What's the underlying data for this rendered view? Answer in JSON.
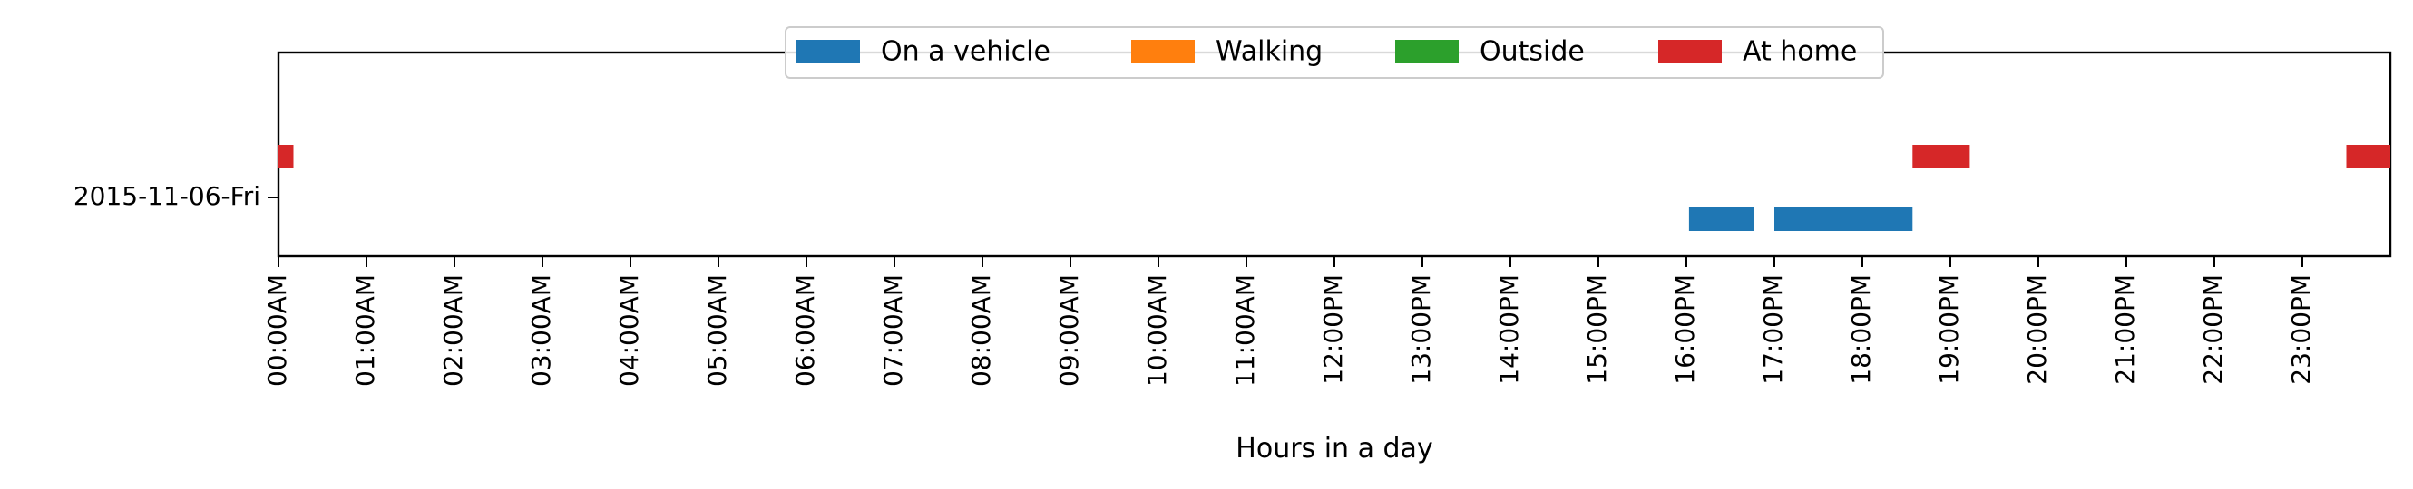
{
  "chart_data": {
    "type": "bar",
    "orientation": "horizontal-timeline",
    "xlabel": "Hours in a day",
    "ylabel": "",
    "xlim": [
      0,
      24
    ],
    "x_ticks": [
      "00:00AM",
      "01:00AM",
      "02:00AM",
      "03:00AM",
      "04:00AM",
      "05:00AM",
      "06:00AM",
      "07:00AM",
      "08:00AM",
      "09:00AM",
      "10:00AM",
      "11:00AM",
      "12:00PM",
      "13:00PM",
      "14:00PM",
      "15:00PM",
      "16:00PM",
      "17:00PM",
      "18:00PM",
      "19:00PM",
      "20:00PM",
      "21:00PM",
      "22:00PM",
      "23:00PM"
    ],
    "categories": [
      "2015-11-06-Fri"
    ],
    "grid": false,
    "legend_position": "top-center",
    "series": [
      {
        "name": "On a vehicle",
        "color": "#1f77b4",
        "lane": 0,
        "segments": [
          {
            "start": 16.03,
            "end": 16.77
          },
          {
            "start": 17.0,
            "end": 18.57
          }
        ]
      },
      {
        "name": "Walking",
        "color": "#ff7f0e",
        "lane": 1,
        "segments": []
      },
      {
        "name": "Outside",
        "color": "#2ca02c",
        "lane": 2,
        "segments": []
      },
      {
        "name": "At home",
        "color": "#d62728",
        "lane": 3,
        "segments": [
          {
            "start": 0.0,
            "end": 0.17
          },
          {
            "start": 18.57,
            "end": 19.22
          },
          {
            "start": 23.5,
            "end": 24.0
          }
        ]
      }
    ]
  }
}
